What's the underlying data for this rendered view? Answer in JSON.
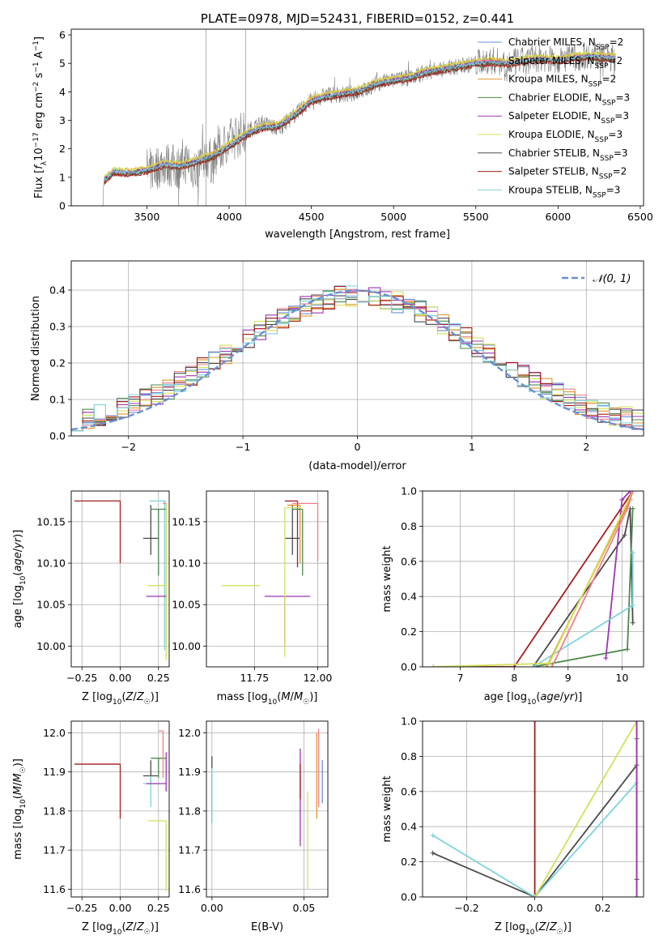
{
  "chart_data": [
    {
      "type": "line",
      "title": "PLATE=0978, MJD=52431, FIBERID=0152, z=0.441",
      "xlabel": "wavelength [Angstrom, rest frame]",
      "ylabel": "Flux [fλ10⁻¹⁷ erg cm⁻² s⁻¹ A⁻¹]",
      "xlim": [
        3040,
        6520
      ],
      "ylim": [
        0,
        6.2
      ],
      "xticks": [
        3500,
        4000,
        4500,
        5000,
        5500,
        6000,
        6500
      ],
      "yticks": [
        0,
        1,
        2,
        3,
        4,
        5,
        6
      ],
      "legend": "top-right",
      "observed_spectrum": {
        "color": "#7f7f7f",
        "x": [
          3220,
          3250,
          3300,
          3350,
          3400,
          3450,
          3500,
          3550,
          3600,
          3650,
          3700,
          3750,
          3800,
          3850,
          3900,
          3950,
          4000,
          4100,
          4200,
          4300,
          4400,
          4500,
          4600,
          4700,
          4800,
          4900,
          5000,
          5100,
          5200,
          5300,
          5400,
          5500,
          5600,
          5700,
          5800,
          5900,
          6000,
          6100,
          6200,
          6300,
          6350
        ],
        "y": [
          0.2,
          1.0,
          1.2,
          1.1,
          1.15,
          1.2,
          1.25,
          1.3,
          1.5,
          1.4,
          1.35,
          1.6,
          1.2,
          1.8,
          1.5,
          2.0,
          2.3,
          2.6,
          2.9,
          2.7,
          3.2,
          3.7,
          3.9,
          3.9,
          4.0,
          4.3,
          4.4,
          4.5,
          4.7,
          4.8,
          4.9,
          5.0,
          5.1,
          5.0,
          5.1,
          5.2,
          5.1,
          5.2,
          5.3,
          5.2,
          5.2
        ]
      },
      "model_x": [
        3240,
        3300,
        3400,
        3500,
        3600,
        3700,
        3800,
        3900,
        4000,
        4100,
        4200,
        4300,
        4400,
        4500,
        4600,
        4700,
        4800,
        4900,
        5000,
        5100,
        5200,
        5300,
        5400,
        5500,
        5600,
        5700,
        5800,
        5900,
        6000,
        6100,
        6200,
        6300,
        6350
      ],
      "model_y": [
        0.9,
        1.2,
        1.15,
        1.25,
        1.45,
        1.4,
        1.55,
        1.75,
        2.1,
        2.5,
        2.75,
        2.8,
        3.2,
        3.7,
        3.85,
        3.95,
        4.05,
        4.3,
        4.4,
        4.5,
        4.7,
        4.8,
        4.9,
        5.0,
        5.05,
        5.0,
        5.1,
        5.15,
        5.1,
        5.2,
        5.25,
        5.2,
        5.2
      ],
      "series": [
        {
          "name": "Chabrier MILES, N",
          "sub": "SSP",
          "n": "=2",
          "color": "#6b8fd6",
          "offset": 0.05
        },
        {
          "name": "Salpeter MILES, N",
          "sub": "SSP",
          "n": "=2",
          "color": "#f07f8c",
          "offset": -0.05
        },
        {
          "name": "Kroupa MILES, N",
          "sub": "SSP",
          "n": "=2",
          "color": "#e0942d",
          "offset": 0.1
        },
        {
          "name": "Chabrier ELODIE, N",
          "sub": "SSP",
          "n": "=3",
          "color": "#4c8a4c",
          "offset": -0.08
        },
        {
          "name": "Salpeter ELODIE, N",
          "sub": "SSP",
          "n": "=3",
          "color": "#9b36b0",
          "offset": 0.03
        },
        {
          "name": "Kroupa ELODIE, N",
          "sub": "SSP",
          "n": "=3",
          "color": "#d4e157",
          "offset": 0.12
        },
        {
          "name": "Chabrier STELIB, N",
          "sub": "SSP",
          "n": "=3",
          "color": "#4a4a4a",
          "offset": -0.02
        },
        {
          "name": "Salpeter STELIB, N",
          "sub": "SSP",
          "n": "=2",
          "color": "#a51c1c",
          "offset": -0.1
        },
        {
          "name": "Kroupa STELIB, N",
          "sub": "SSP",
          "n": "=3",
          "color": "#7fd3dc",
          "offset": 0.0
        }
      ]
    },
    {
      "type": "histogram",
      "xlabel": "(data-model)/error",
      "ylabel": "Normed distribution",
      "xlim": [
        -2.5,
        2.5
      ],
      "ylim": [
        0,
        0.48
      ],
      "xticks": [
        -2,
        -1,
        0,
        1,
        2
      ],
      "yticks": [
        0.0,
        0.1,
        0.2,
        0.3,
        0.4
      ],
      "reference": {
        "label": "𝒩(0, 1)",
        "color": "#6b8fd6",
        "style": "dashed"
      },
      "legend": "top-right",
      "bin_width": 0.1,
      "bin_start": -2.5
    },
    {
      "type": "scatter",
      "xlabel": "Z [log10(Z/Z☉)]",
      "ylabel": "age  [log10(age/yr)]",
      "xlim": [
        -0.32,
        0.32
      ],
      "ylim": [
        9.975,
        10.187
      ],
      "xticks": [
        -0.25,
        0.0,
        0.25
      ],
      "yticks": [
        10.0,
        10.05,
        10.1,
        10.15
      ],
      "points": [
        {
          "x": 0.0,
          "xerr": [
            0.3,
            0.0
          ],
          "y": 10.175,
          "yerr": [
            0.075,
            0.0
          ],
          "color": "#a51c1c"
        },
        {
          "x": 0.2,
          "xerr": [
            0.05,
            0.05
          ],
          "y": 10.13,
          "yerr": [
            0.02,
            0.04
          ],
          "color": "#4a4a4a"
        },
        {
          "x": 0.29,
          "xerr": [
            0.1,
            0.01
          ],
          "y": 10.175,
          "yerr": [
            0.18,
            0.0
          ],
          "color": "#7fd3dc"
        },
        {
          "x": 0.3,
          "xerr": [
            0.0,
            0.0
          ],
          "y": 10.172,
          "yerr": [
            0.17,
            0.0
          ],
          "color": "#e0942d"
        },
        {
          "x": 0.25,
          "xerr": [
            0.05,
            0.05
          ],
          "y": 10.165,
          "yerr": [
            0.08,
            0.0
          ],
          "color": "#4c8a4c"
        },
        {
          "x": 0.3,
          "xerr": [
            0.12,
            0.0
          ],
          "y": 10.073,
          "yerr": [
            0.09,
            0.1
          ],
          "color": "#d4e157"
        },
        {
          "x": 0.3,
          "xerr": [
            0.13,
            0.0
          ],
          "y": 10.06,
          "yerr": [
            0.0,
            0.0
          ],
          "color": "#9b36b0"
        },
        {
          "x": 0.28,
          "xerr": [
            0.0,
            0.02
          ],
          "y": 10.172,
          "yerr": [
            0.0,
            0.0
          ],
          "color": "#f07f8c"
        }
      ]
    },
    {
      "type": "scatter",
      "xlabel": "mass [log10(M/M☉)]",
      "xlim": [
        11.56,
        12.04
      ],
      "ylim": [
        9.975,
        10.187
      ],
      "xticks": [
        11.75,
        12.0
      ],
      "yticks": [
        10.0,
        10.05,
        10.1,
        10.15
      ],
      "points": [
        {
          "x": 11.9,
          "xerr": [
            0.03,
            0.03
          ],
          "y": 10.13,
          "yerr": [
            0.02,
            0.04
          ],
          "color": "#4a4a4a"
        },
        {
          "x": 11.92,
          "xerr": [
            0.05,
            0.0
          ],
          "y": 10.175,
          "yerr": [
            0.08,
            0.0
          ],
          "color": "#a51c1c"
        },
        {
          "x": 11.93,
          "xerr": [
            0.05,
            0.0
          ],
          "y": 10.17,
          "yerr": [
            0.07,
            0.0
          ],
          "color": "#e0942d"
        },
        {
          "x": 11.94,
          "xerr": [
            0.04,
            0.0
          ],
          "y": 10.165,
          "yerr": [
            0.08,
            0.0
          ],
          "color": "#4c8a4c"
        },
        {
          "x": 12.0,
          "xerr": [
            0.1,
            0.0
          ],
          "y": 10.172,
          "yerr": [
            0.07,
            0.0
          ],
          "color": "#f07f8c"
        },
        {
          "x": 11.77,
          "xerr": [
            0.15,
            0.0
          ],
          "y": 10.073,
          "yerr": [
            0.0,
            0.0
          ],
          "color": "#d4e157"
        },
        {
          "x": 11.87,
          "xerr": [
            0.08,
            0.1
          ],
          "y": 10.06,
          "yerr": [
            0.06,
            0.0
          ],
          "color": "#9b36b0"
        },
        {
          "x": 11.87,
          "xerr": [
            0.0,
            0.06
          ],
          "y": 10.167,
          "yerr": [
            0.18,
            0.0
          ],
          "color": "#d4e157"
        }
      ]
    },
    {
      "type": "line",
      "xlabel": "age  [log10(age/yr)]",
      "ylabel": "mass weight",
      "xlim": [
        6.3,
        10.4
      ],
      "ylim": [
        0.0,
        1.0
      ],
      "xticks": [
        7,
        8,
        9,
        10
      ],
      "yticks": [
        0.0,
        0.2,
        0.4,
        0.6,
        0.8,
        1.0
      ],
      "series": [
        {
          "color": "#a51c1c",
          "x": [
            6.5,
            8.0,
            10.2
          ],
          "y": [
            0.0,
            0.0,
            1.0
          ]
        },
        {
          "color": "#4a4a4a",
          "x": [
            8.35,
            10.05,
            10.15,
            10.2
          ],
          "y": [
            0.0,
            0.75,
            0.9,
            0.25
          ]
        },
        {
          "color": "#4c8a4c",
          "x": [
            8.35,
            10.1,
            10.2
          ],
          "y": [
            0.0,
            0.1,
            0.9
          ]
        },
        {
          "color": "#9b36b0",
          "x": [
            9.7,
            10.0,
            10.15
          ],
          "y": [
            0.05,
            0.95,
            1.0
          ]
        },
        {
          "color": "#7fd3dc",
          "x": [
            8.35,
            10.2,
            10.2
          ],
          "y": [
            0.0,
            0.35,
            0.65
          ]
        },
        {
          "color": "#e0942d",
          "x": [
            8.6,
            10.15,
            10.2
          ],
          "y": [
            0.0,
            0.95,
            1.0
          ]
        },
        {
          "color": "#d4e157",
          "x": [
            6.5,
            8.65,
            10.2
          ],
          "y": [
            0.0,
            0.02,
            1.0
          ]
        },
        {
          "color": "#f07f8c",
          "x": [
            8.7,
            10.1,
            10.2
          ],
          "y": [
            0.0,
            0.9,
            1.0
          ]
        }
      ]
    },
    {
      "type": "scatter",
      "xlabel": "Z [log10(Z/Z☉)]",
      "ylabel": "mass [log10(M/M☉)]",
      "xlim": [
        -0.32,
        0.32
      ],
      "ylim": [
        11.58,
        12.03
      ],
      "xticks": [
        -0.25,
        0.0,
        0.25
      ],
      "yticks": [
        11.6,
        11.7,
        11.8,
        11.9,
        12.0
      ],
      "points": [
        {
          "x": 0.0,
          "xerr": [
            0.3,
            0.0
          ],
          "y": 11.92,
          "yerr": [
            0.14,
            0.0
          ],
          "color": "#a51c1c"
        },
        {
          "x": 0.2,
          "xerr": [
            0.05,
            0.05
          ],
          "y": 11.89,
          "yerr": [
            0.02,
            0.04
          ],
          "color": "#4a4a4a"
        },
        {
          "x": 0.2,
          "xerr": [
            0.05,
            0.05
          ],
          "y": 11.87,
          "yerr": [
            0.06,
            0.02
          ],
          "color": "#7fd3dc"
        },
        {
          "x": 0.25,
          "xerr": [
            0.05,
            0.05
          ],
          "y": 11.935,
          "yerr": [
            0.05,
            0.0
          ],
          "color": "#4c8a4c"
        },
        {
          "x": 0.3,
          "xerr": [
            0.12,
            0.0
          ],
          "y": 11.775,
          "yerr": [
            0.18,
            0.0
          ],
          "color": "#d4e157"
        },
        {
          "x": 0.3,
          "xerr": [
            0.13,
            0.0
          ],
          "y": 11.87,
          "yerr": [
            0.02,
            0.08
          ],
          "color": "#9b36b0"
        },
        {
          "x": 0.28,
          "xerr": [
            0.03,
            0.0
          ],
          "y": 12.005,
          "yerr": [
            0.12,
            0.0
          ],
          "color": "#f07f8c"
        },
        {
          "x": 0.3,
          "xerr": [
            0.0,
            0.0
          ],
          "y": 11.9,
          "yerr": [
            0.0,
            0.0
          ],
          "color": "#e0942d"
        }
      ]
    },
    {
      "type": "scatter",
      "xlabel": "E(B-V)",
      "xlim": [
        -0.003,
        0.063
      ],
      "ylim": [
        11.58,
        12.03
      ],
      "xticks": [
        0.0,
        0.05
      ],
      "yticks": [
        11.6,
        11.7,
        11.8,
        11.9,
        12.0
      ],
      "points": [
        {
          "x": 0.0,
          "y": 11.87,
          "yerr": [
            0.1,
            0.07
          ],
          "color": "#4a4a4a"
        },
        {
          "x": 0.0,
          "y": 11.85,
          "yerr": [
            0.08,
            0.06
          ],
          "color": "#7fd3dc"
        },
        {
          "x": 0.048,
          "y": 11.84,
          "yerr": [
            0.13,
            0.12
          ],
          "color": "#9b36b0"
        },
        {
          "x": 0.048,
          "y": 11.85,
          "yerr": [
            0.02,
            0.07
          ],
          "color": "#a51c1c"
        },
        {
          "x": 0.052,
          "y": 11.72,
          "yerr": [
            0.12,
            0.13
          ],
          "color": "#d4e157"
        },
        {
          "x": 0.057,
          "y": 11.9,
          "yerr": [
            0.12,
            0.1
          ],
          "color": "#e0942d"
        },
        {
          "x": 0.058,
          "y": 11.92,
          "yerr": [
            0.11,
            0.09
          ],
          "color": "#f07f8c"
        },
        {
          "x": 0.06,
          "y": 11.88,
          "yerr": [
            0.06,
            0.05
          ],
          "color": "#6b8fd6"
        }
      ]
    },
    {
      "type": "line",
      "xlabel": "Z [log10(Z/Z☉)]",
      "ylabel": "mass weight",
      "xlim": [
        -0.33,
        0.32
      ],
      "ylim": [
        0.0,
        1.0
      ],
      "xticks": [
        -0.2,
        0.0,
        0.2
      ],
      "yticks": [
        0.0,
        0.2,
        0.4,
        0.6,
        0.8,
        1.0
      ],
      "series": [
        {
          "color": "#a51c1c",
          "x": [
            0.0,
            0.0
          ],
          "y": [
            0.0,
            1.0
          ]
        },
        {
          "color": "#4a4a4a",
          "x": [
            -0.3,
            0.0,
            0.3,
            0.3,
            0.3
          ],
          "y": [
            0.25,
            0.0,
            0.75,
            0.1,
            0.0
          ]
        },
        {
          "color": "#7fd3dc",
          "x": [
            -0.3,
            0.0,
            0.3,
            0.3
          ],
          "y": [
            0.35,
            0.0,
            0.65,
            0.0
          ]
        },
        {
          "color": "#d4e157",
          "x": [
            0.0,
            0.3,
            0.3
          ],
          "y": [
            0.0,
            1.0,
            0.0
          ]
        },
        {
          "color": "#e0942d",
          "x": [
            0.3,
            0.3
          ],
          "y": [
            0.0,
            1.0
          ]
        },
        {
          "color": "#4c8a4c",
          "x": [
            0.3,
            0.3
          ],
          "y": [
            0.0,
            0.9
          ]
        },
        {
          "color": "#f07f8c",
          "x": [
            0.3,
            0.3
          ],
          "y": [
            0.0,
            1.0
          ]
        },
        {
          "color": "#9b36b0",
          "x": [
            0.3,
            0.3
          ],
          "y": [
            0.0,
            1.0
          ]
        }
      ]
    }
  ]
}
